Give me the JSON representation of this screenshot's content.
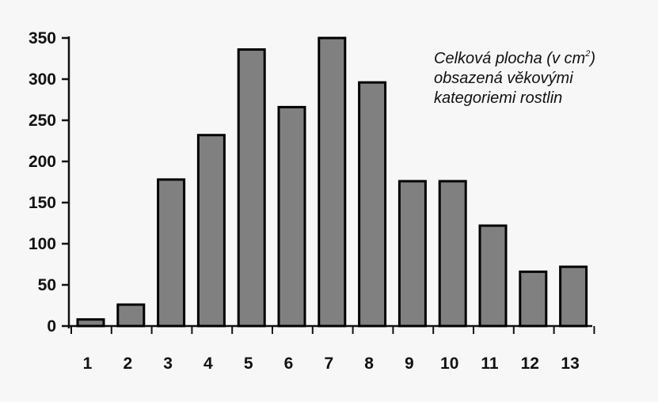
{
  "chart_data": {
    "type": "bar",
    "title": "",
    "xlabel": "",
    "ylabel": "",
    "categories": [
      "1",
      "2",
      "3",
      "4",
      "5",
      "6",
      "7",
      "8",
      "9",
      "10",
      "11",
      "12",
      "13"
    ],
    "values": [
      8,
      26,
      178,
      232,
      336,
      266,
      350,
      296,
      176,
      176,
      122,
      66,
      72
    ],
    "ylim": [
      0,
      350
    ],
    "yticks": [
      "0",
      "50",
      "100",
      "150",
      "200",
      "250",
      "300",
      "350"
    ],
    "grid": false,
    "legend": "none",
    "bar_color": "#808080",
    "bar_edge_color": "#000000",
    "annotation": {
      "line1_pre": "Celková plocha (v cm",
      "line1_sup": "2",
      "line1_post": ")",
      "line2": "obsazená věkovými",
      "line3": "kategoriemi rostlin"
    }
  }
}
